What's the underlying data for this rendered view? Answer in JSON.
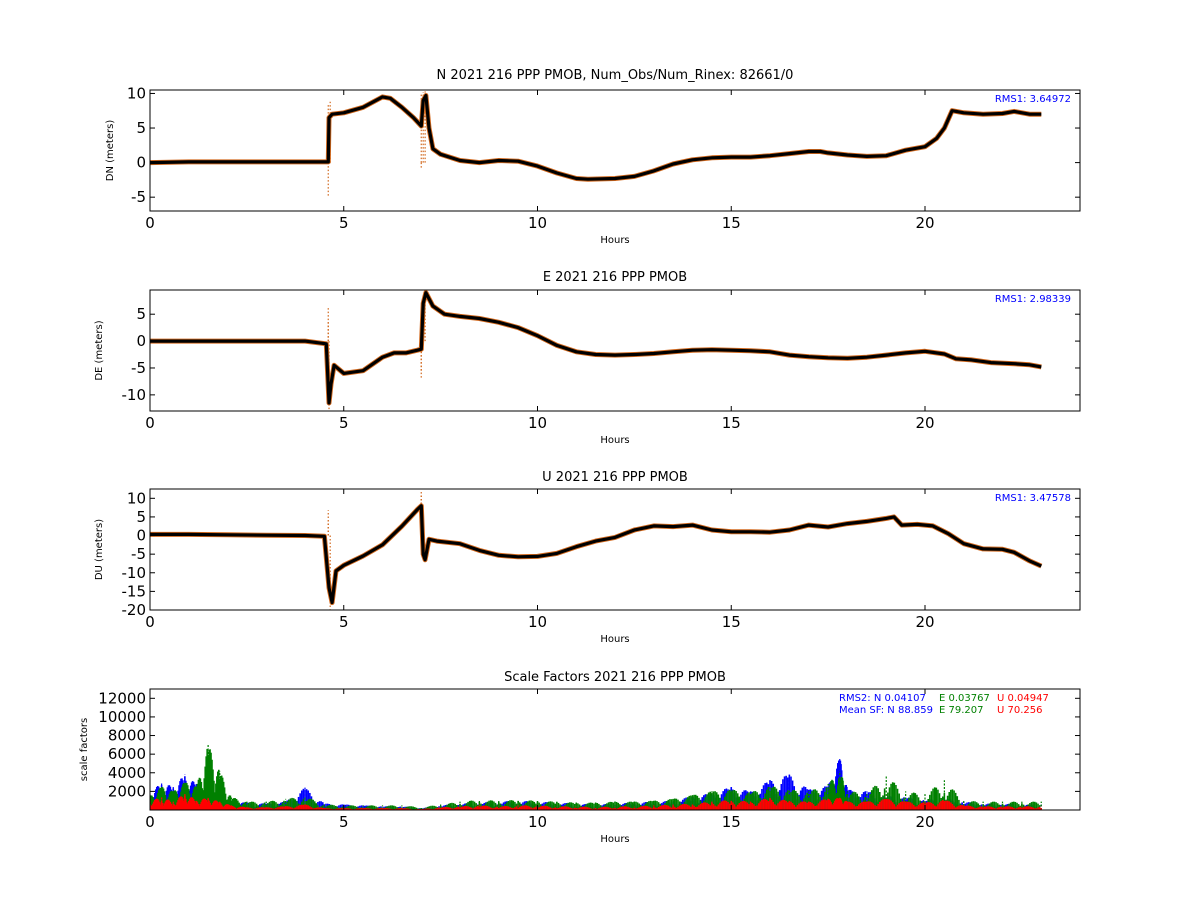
{
  "chart_data": [
    {
      "type": "line",
      "title": "N 2021 216 PPP  PMOB, Num_Obs/Num_Rinex: 82661/0",
      "xlabel": "Hours",
      "ylabel": "DN (meters)",
      "xlim": [
        0,
        24
      ],
      "ylim": [
        -7,
        10.5
      ],
      "xticks": [
        0,
        5,
        10,
        15,
        20
      ],
      "yticks": [
        -5,
        0,
        5,
        10
      ],
      "annotation": {
        "label": "RMS1:",
        "value": "3.64972",
        "color": "#0000ff"
      },
      "series": [
        {
          "color": "#000000",
          "x": [
            0,
            1,
            2,
            3,
            4,
            4.6,
            4.62,
            4.7,
            5.0,
            5.5,
            6.0,
            6.2,
            6.5,
            6.8,
            7.0,
            7.05,
            7.12,
            7.2,
            7.3,
            7.5,
            8.0,
            8.5,
            9.0,
            9.5,
            10.0,
            10.5,
            11.0,
            11.3,
            12.0,
            12.5,
            13.0,
            13.5,
            14.0,
            14.5,
            15.0,
            15.5,
            16.0,
            16.5,
            17.0,
            17.3,
            17.5,
            18.0,
            18.5,
            19.0,
            19.5,
            20.0,
            20.3,
            20.5,
            20.7,
            21.0,
            21.5,
            22.0,
            22.3,
            22.7,
            23.0
          ],
          "y": [
            0,
            0.1,
            0.1,
            0.1,
            0.1,
            0.1,
            6.5,
            7.0,
            7.2,
            8.0,
            9.5,
            9.3,
            8.0,
            6.5,
            5.3,
            9.0,
            9.7,
            5.0,
            2.0,
            1.2,
            0.3,
            0.0,
            0.3,
            0.2,
            -0.5,
            -1.5,
            -2.3,
            -2.4,
            -2.3,
            -2.0,
            -1.2,
            -0.2,
            0.4,
            0.7,
            0.8,
            0.8,
            1.0,
            1.3,
            1.6,
            1.6,
            1.4,
            1.1,
            0.9,
            1.0,
            1.8,
            2.3,
            3.5,
            5.0,
            7.5,
            7.2,
            7.0,
            7.1,
            7.4,
            7.0,
            7.0
          ]
        }
      ],
      "outliers": {
        "color": "#d2691e",
        "x": [
          4.6,
          4.6,
          4.65,
          7.0,
          7.0,
          7.05,
          7.1
        ],
        "y": [
          -4.8,
          8.5,
          8.8,
          -0.8,
          10.0,
          10.2,
          10.3
        ]
      }
    },
    {
      "type": "line",
      "title": "E 2021 216 PPP  PMOB",
      "xlabel": "Hours",
      "ylabel": "DE (meters)",
      "xlim": [
        0,
        24
      ],
      "ylim": [
        -13,
        9.5
      ],
      "xticks": [
        0,
        5,
        10,
        15,
        20
      ],
      "yticks": [
        -10,
        -5,
        0,
        5
      ],
      "annotation": {
        "label": "RMS1:",
        "value": "2.98339",
        "color": "#0000ff"
      },
      "series": [
        {
          "color": "#000000",
          "x": [
            0,
            1,
            2,
            3,
            4,
            4.55,
            4.62,
            4.67,
            4.75,
            5.0,
            5.5,
            6.0,
            6.3,
            6.6,
            6.9,
            7.0,
            7.05,
            7.12,
            7.3,
            7.6,
            8.0,
            8.5,
            9.0,
            9.5,
            10.0,
            10.5,
            11.0,
            11.5,
            12.0,
            12.5,
            13.0,
            13.5,
            14.0,
            14.5,
            15.0,
            15.5,
            16.0,
            16.5,
            17.0,
            17.5,
            18.0,
            18.5,
            19.0,
            19.5,
            20.0,
            20.5,
            20.8,
            21.2,
            21.7,
            22.3,
            22.7,
            23.0
          ],
          "y": [
            0,
            0,
            0,
            0,
            0,
            -0.5,
            -11.5,
            -8.0,
            -4.5,
            -6.0,
            -5.5,
            -3.0,
            -2.2,
            -2.2,
            -1.7,
            -1.5,
            7.0,
            9.0,
            6.5,
            5.0,
            4.6,
            4.2,
            3.5,
            2.5,
            1.0,
            -0.8,
            -2.0,
            -2.5,
            -2.6,
            -2.5,
            -2.3,
            -2.0,
            -1.7,
            -1.6,
            -1.7,
            -1.8,
            -2.0,
            -2.6,
            -2.9,
            -3.1,
            -3.2,
            -3.0,
            -2.6,
            -2.2,
            -1.9,
            -2.4,
            -3.3,
            -3.5,
            -4.0,
            -4.2,
            -4.4,
            -4.8
          ]
        }
      ],
      "outliers": {
        "color": "#d2691e",
        "x": [
          4.6,
          4.6,
          4.62,
          7.0,
          7.0,
          7.1
        ],
        "y": [
          6.5,
          3.5,
          -12.8,
          -7.0,
          -5.5,
          9.4
        ]
      }
    },
    {
      "type": "line",
      "title": "U 2021 216 PPP  PMOB",
      "xlabel": "Hours",
      "ylabel": "DU (meters)",
      "xlim": [
        0,
        24
      ],
      "ylim": [
        -20,
        12.5
      ],
      "xticks": [
        0,
        5,
        10,
        15,
        20
      ],
      "yticks": [
        -20,
        -15,
        -10,
        -5,
        0,
        5,
        10
      ],
      "annotation": {
        "label": "RMS1:",
        "value": "3.47578",
        "color": "#0000ff"
      },
      "series": [
        {
          "color": "#000000",
          "x": [
            0,
            1,
            2,
            3,
            4,
            4.5,
            4.62,
            4.7,
            4.8,
            5.0,
            5.5,
            6.0,
            6.5,
            6.9,
            7.0,
            7.05,
            7.1,
            7.2,
            7.4,
            8.0,
            8.5,
            9.0,
            9.5,
            10.0,
            10.5,
            11.0,
            11.5,
            12.0,
            12.5,
            13.0,
            13.5,
            14.0,
            14.5,
            15.0,
            15.5,
            16.0,
            16.5,
            17.0,
            17.5,
            18.0,
            18.5,
            19.0,
            19.2,
            19.4,
            19.8,
            20.2,
            20.6,
            21.0,
            21.5,
            22.0,
            22.3,
            22.7,
            23.0
          ],
          "y": [
            0.3,
            0.3,
            0.2,
            0.1,
            0.0,
            -0.2,
            -14.0,
            -18.0,
            -9.5,
            -8.0,
            -5.5,
            -2.5,
            2.5,
            7.0,
            8.0,
            -5.0,
            -6.5,
            -1.0,
            -1.5,
            -2.2,
            -4.0,
            -5.3,
            -5.7,
            -5.6,
            -4.8,
            -3.0,
            -1.5,
            -0.5,
            1.5,
            2.6,
            2.4,
            2.8,
            1.5,
            1.0,
            1.0,
            0.9,
            1.5,
            2.8,
            2.3,
            3.2,
            3.8,
            4.6,
            5.0,
            2.8,
            3.0,
            2.6,
            0.5,
            -2.2,
            -3.6,
            -3.7,
            -4.5,
            -6.8,
            -8.2
          ]
        }
      ],
      "outliers": {
        "color": "#d2691e",
        "x": [
          4.6,
          4.6,
          4.65,
          7.0,
          7.0
        ],
        "y": [
          6.8,
          4.0,
          -19.8,
          12.0,
          11.0
        ]
      }
    },
    {
      "type": "bar",
      "title": "Scale Factors 2021 216 PPP  PMOB",
      "xlabel": "Hours",
      "ylabel": "scale factors",
      "xlim": [
        0,
        24
      ],
      "ylim": [
        0,
        13000
      ],
      "xticks": [
        0,
        5,
        10,
        15,
        20
      ],
      "yticks": [
        2000,
        4000,
        6000,
        8000,
        10000,
        12000
      ],
      "annotations": {
        "rms2_label": "RMS2: N",
        "rms2_n": "0.04107",
        "rms2_e_label": "E",
        "rms2_e": "0.03767",
        "rms2_u_label": "U",
        "rms2_u": "0.04947",
        "mean_label": "Mean SF: N",
        "mean_n": "88.859",
        "mean_e_label": "E",
        "mean_e": "79.207",
        "mean_u_label": "U",
        "mean_u": "70.256"
      },
      "series": [
        {
          "name": "N",
          "color": "#0000ff",
          "x": [
            0,
            0.3,
            0.6,
            0.9,
            1.2,
            1.5,
            1.8,
            2.1,
            2.5,
            3.0,
            3.5,
            4.0,
            4.5,
            5.0,
            5.5,
            6.0,
            6.5,
            7.0,
            7.5,
            8.0,
            8.5,
            9.0,
            9.5,
            10.0,
            10.5,
            11.0,
            11.5,
            12.0,
            12.5,
            13.0,
            13.5,
            14.0,
            14.5,
            15.0,
            15.5,
            16.0,
            16.5,
            17.0,
            17.5,
            17.8,
            18.0,
            18.5,
            19.0,
            19.5,
            20.0,
            20.5,
            21.0,
            21.5,
            22.0,
            22.5,
            23.0
          ],
          "y": [
            1800,
            3000,
            2500,
            3800,
            2800,
            1500,
            1300,
            900,
            800,
            700,
            900,
            2400,
            700,
            600,
            500,
            400,
            400,
            200,
            500,
            700,
            800,
            900,
            1000,
            900,
            800,
            700,
            600,
            700,
            800,
            900,
            1000,
            1500,
            1800,
            2500,
            2000,
            3200,
            3800,
            2200,
            2600,
            5600,
            2200,
            2000,
            1500,
            1400,
            1100,
            1300,
            900,
            700,
            700,
            600,
            600
          ]
        },
        {
          "name": "E",
          "color": "#008000",
          "x": [
            0,
            0.3,
            0.6,
            0.9,
            1.2,
            1.5,
            1.8,
            2.1,
            2.5,
            3.0,
            3.5,
            4.0,
            4.5,
            5.0,
            5.5,
            6.0,
            6.5,
            7.0,
            7.5,
            8.0,
            8.5,
            9.0,
            9.5,
            10.0,
            10.5,
            11.0,
            11.5,
            12.0,
            12.5,
            13.0,
            13.5,
            14.0,
            14.5,
            15.0,
            15.5,
            16.0,
            16.5,
            17.0,
            17.5,
            17.8,
            18.0,
            18.5,
            19.0,
            19.5,
            20.0,
            20.5,
            21.0,
            21.5,
            22.0,
            22.5,
            23.0
          ],
          "y": [
            1500,
            2500,
            2000,
            3000,
            2500,
            7000,
            4200,
            1400,
            900,
            900,
            1200,
            1500,
            600,
            500,
            500,
            500,
            500,
            300,
            600,
            900,
            1100,
            1000,
            1100,
            1000,
            900,
            800,
            800,
            900,
            900,
            1000,
            1200,
            1600,
            2000,
            2200,
            1900,
            2600,
            2200,
            2000,
            2800,
            4200,
            2000,
            1900,
            3600,
            2000,
            1700,
            3200,
            1000,
            900,
            900,
            900,
            900
          ]
        },
        {
          "name": "U",
          "color": "#ff0000",
          "x": [
            0,
            0.3,
            0.6,
            0.9,
            1.2,
            1.5,
            1.8,
            2.1,
            2.5,
            3.0,
            3.5,
            4.0,
            4.5,
            5.0,
            5.5,
            6.0,
            6.5,
            7.0,
            7.5,
            8.0,
            8.5,
            9.0,
            9.5,
            10.0,
            10.5,
            11.0,
            11.5,
            12.0,
            12.5,
            13.0,
            13.5,
            14.0,
            14.5,
            15.0,
            15.5,
            16.0,
            16.5,
            17.0,
            17.5,
            17.8,
            18.0,
            18.5,
            19.0,
            19.5,
            20.0,
            20.5,
            21.0,
            21.5,
            22.0,
            22.5,
            23.0
          ],
          "y": [
            1000,
            1400,
            900,
            1800,
            1100,
            1300,
            900,
            500,
            300,
            300,
            400,
            600,
            200,
            200,
            200,
            200,
            200,
            100,
            300,
            400,
            500,
            400,
            500,
            500,
            400,
            400,
            300,
            400,
            400,
            500,
            600,
            700,
            900,
            1100,
            900,
            1300,
            1000,
            900,
            1200,
            1300,
            900,
            900,
            1200,
            900,
            800,
            1100,
            500,
            400,
            400,
            400,
            400
          ]
        }
      ]
    }
  ]
}
